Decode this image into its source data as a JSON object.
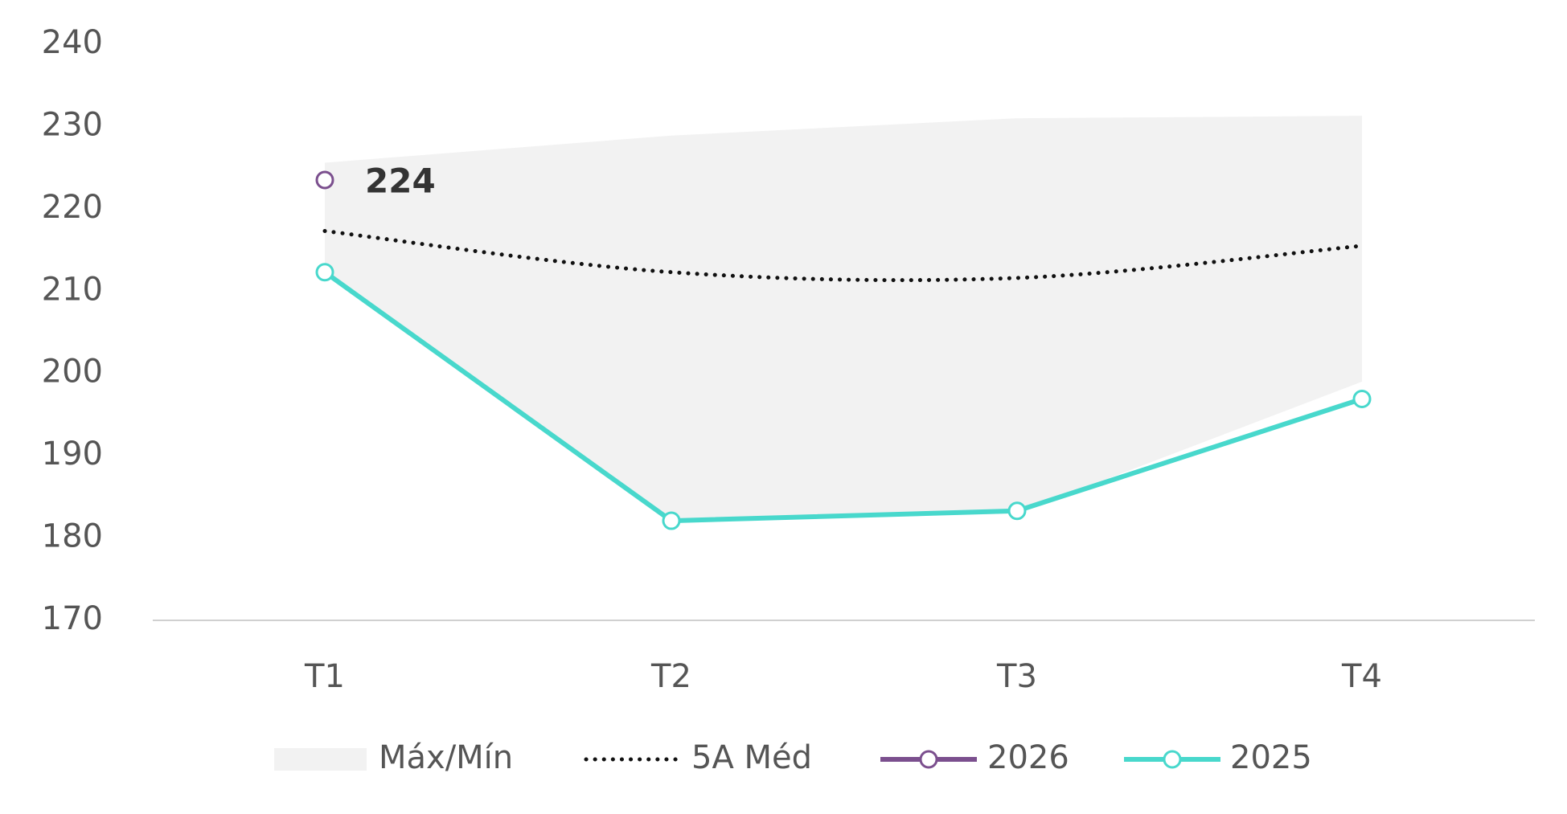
{
  "chart_data": {
    "type": "line",
    "categories": [
      "T1",
      "T2",
      "T3",
      "T4"
    ],
    "band": {
      "name": "Máx/Mín",
      "color": "#f2f2f2",
      "max": [
        225.6,
        228.9,
        231,
        231.3
      ],
      "min": [
        212,
        182,
        183,
        199
      ]
    },
    "series": [
      {
        "name": "5A Méd",
        "color": "#111111",
        "style": "dotted",
        "values": [
          217.3,
          212.3,
          211.6,
          215.5
        ]
      },
      {
        "name": "2026",
        "color": "#7b4f8e",
        "values": [
          223.5,
          null,
          null,
          null
        ],
        "value_labels": [
          "224",
          null,
          null,
          null
        ]
      },
      {
        "name": "2025",
        "color": "#48d8cc",
        "values": [
          212.3,
          182.1,
          183.3,
          196.9
        ]
      }
    ],
    "ylim": [
      170,
      240
    ],
    "yticks": [
      170,
      180,
      190,
      200,
      210,
      220,
      230,
      240
    ],
    "grid": false
  }
}
